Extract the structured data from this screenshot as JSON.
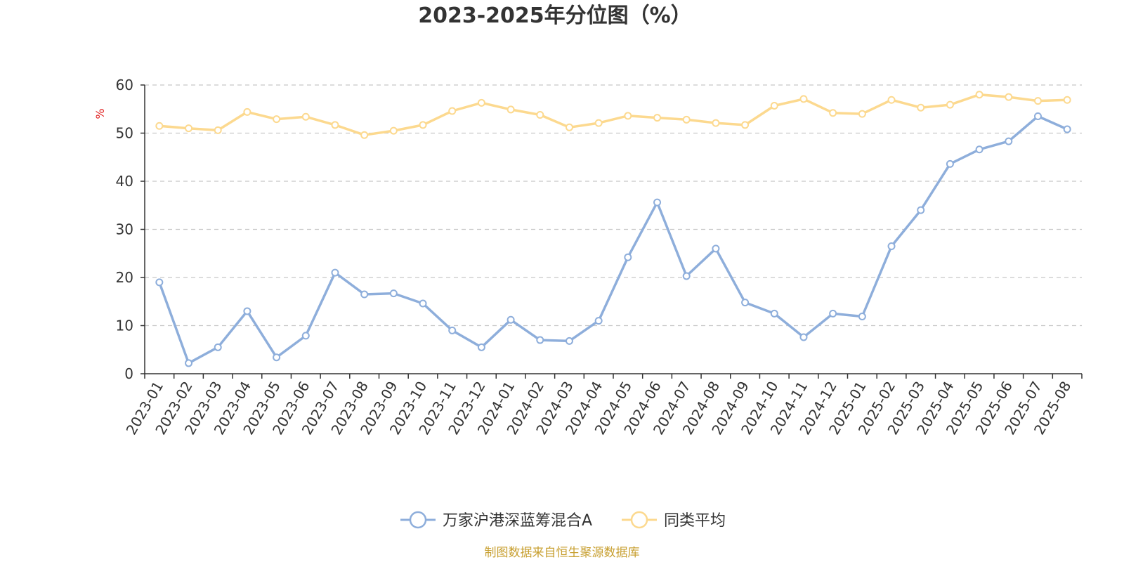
{
  "chart_data": {
    "type": "line",
    "title": "2023-2025年分位图（%）",
    "ylabel": "%",
    "ylim": [
      0,
      60
    ],
    "yticks": [
      0,
      10,
      20,
      30,
      40,
      50,
      60
    ],
    "grid": true,
    "legend_position": "bottom-center",
    "categories": [
      "2023-01",
      "2023-02",
      "2023-03",
      "2023-04",
      "2023-05",
      "2023-06",
      "2023-07",
      "2023-08",
      "2023-09",
      "2023-10",
      "2023-11",
      "2023-12",
      "2024-01",
      "2024-02",
      "2024-03",
      "2024-04",
      "2024-05",
      "2024-06",
      "2024-07",
      "2024-08",
      "2024-09",
      "2024-10",
      "2024-11",
      "2024-12",
      "2025-01",
      "2025-02",
      "2025-03",
      "2025-04",
      "2025-05",
      "2025-06",
      "2025-07",
      "2025-08"
    ],
    "series": [
      {
        "name": "万家沪港深蓝筹混合A",
        "color": "#8eaedb",
        "values": [
          19.0,
          2.2,
          5.5,
          13.0,
          3.4,
          7.9,
          21.0,
          16.5,
          16.7,
          14.6,
          9.0,
          5.5,
          11.2,
          7.0,
          6.8,
          11.0,
          24.2,
          35.6,
          20.3,
          26.0,
          14.8,
          12.5,
          7.6,
          12.5,
          11.9,
          26.5,
          34.0,
          43.6,
          46.6,
          48.3,
          53.5,
          50.8
        ]
      },
      {
        "name": "同类平均",
        "color": "#fcd98f",
        "values": [
          51.5,
          51.0,
          50.6,
          54.4,
          52.9,
          53.4,
          51.7,
          49.6,
          50.5,
          51.7,
          54.6,
          56.3,
          54.9,
          53.8,
          51.2,
          52.1,
          53.6,
          53.2,
          52.8,
          52.1,
          51.7,
          55.7,
          57.1,
          54.2,
          54.0,
          56.9,
          55.3,
          55.9,
          58.0,
          57.5,
          56.7,
          56.9
        ]
      }
    ]
  },
  "footer": {
    "text": "制图数据来自恒生聚源数据库",
    "color": "#c8a032"
  },
  "colors": {
    "unit_label": "#e02020",
    "axis": "#333333",
    "grid": "#c8c8c8"
  }
}
